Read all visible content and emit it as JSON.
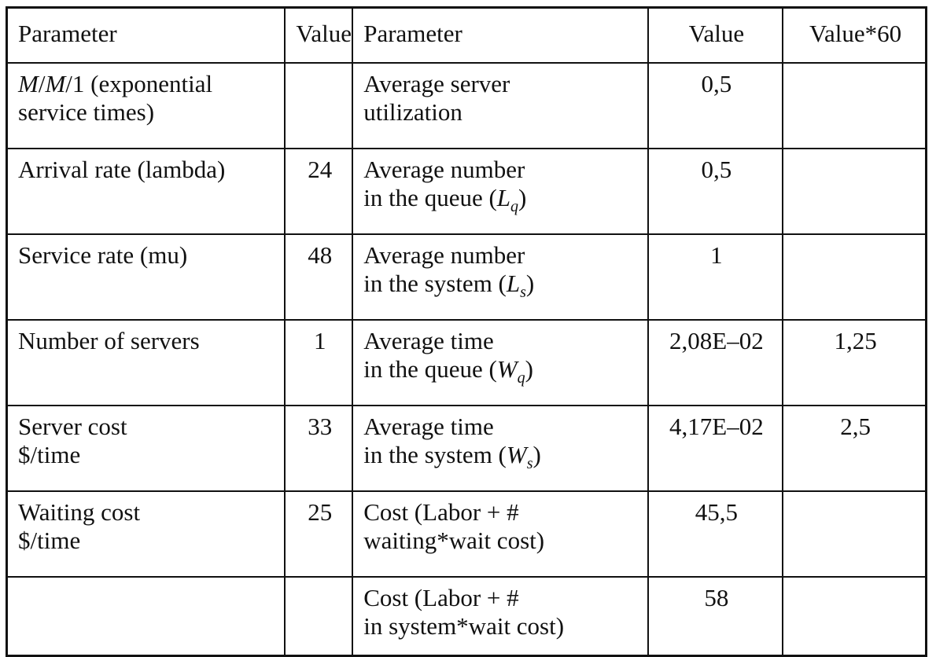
{
  "headers": [
    "Parameter",
    "Value",
    "Parameter",
    "Value",
    "Value*60"
  ],
  "rows": [
    {
      "param1_line1": "M/M/1 (exponential",
      "param1_line2": "service times)",
      "value1": "",
      "param2_line1": "Average server",
      "param2_line2": "utilization",
      "value2": "0,5",
      "value60": ""
    },
    {
      "param1_line1": "Arrival rate (lambda)",
      "param1_line2": "",
      "value1": "24",
      "param2_line1": "Average number",
      "param2_line2": "in the queue (",
      "symbol": "L",
      "subscript": "q",
      "value2": "0,5",
      "value60": ""
    },
    {
      "param1_line1": "Service rate (mu)",
      "param1_line2": "",
      "value1": "48",
      "param2_line1": "Average number",
      "param2_line2": "in the system (",
      "symbol": "L",
      "subscript": "s",
      "value2": "1",
      "value60": ""
    },
    {
      "param1_line1": "Number of servers",
      "param1_line2": "",
      "value1": "1",
      "param2_line1": "Average time",
      "param2_line2": "in the queue (",
      "symbol": "W",
      "subscript": "q",
      "value2": "2,08E–02",
      "value60": "1,25"
    },
    {
      "param1_line1": "Server cost",
      "param1_line2": "$/time",
      "value1": "33",
      "param2_line1": "Average time",
      "param2_line2": "in the system (",
      "symbol": "W",
      "subscript": "s",
      "value2": "4,17E–02",
      "value60": "2,5"
    },
    {
      "param1_line1": "Waiting cost",
      "param1_line2": "$/time",
      "value1": "25",
      "param2_line1": "Cost (Labor + #",
      "param2_line2": "waiting*wait cost)",
      "value2": "45,5",
      "value60": ""
    },
    {
      "param1_line1": "",
      "param1_line2": "",
      "value1": "",
      "param2_line1": "Cost (Labor + #",
      "param2_line2": "in system*wait cost)",
      "value2": "58",
      "value60": ""
    }
  ]
}
